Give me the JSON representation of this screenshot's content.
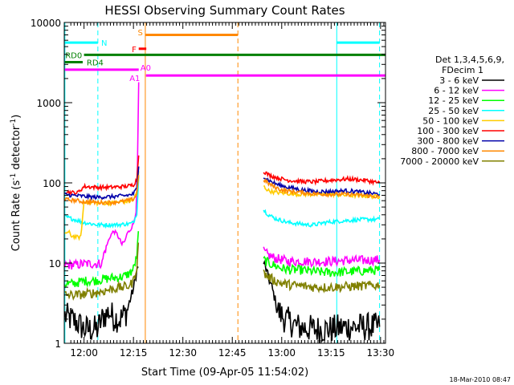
{
  "chart_data": {
    "type": "line",
    "title": "HESSI Observing Summary Count Rates",
    "xlabel": "Start Time (09-Apr-05 11:54:02)",
    "ylabel_main": "Count Rate (s",
    "ylabel_sup1": "-1",
    "ylabel_mid": " detector",
    "ylabel_sup2": "-1",
    "ylabel_end": ")",
    "yscale": "log",
    "ylim": [
      1,
      10000
    ],
    "xlim_minutes": [
      714.0,
      811.5
    ],
    "x_ticks": [
      {
        "m": 720,
        "label": "12:00"
      },
      {
        "m": 735,
        "label": "12:15"
      },
      {
        "m": 750,
        "label": "12:30"
      },
      {
        "m": 765,
        "label": "12:45"
      },
      {
        "m": 780,
        "label": "13:00"
      },
      {
        "m": 795,
        "label": "13:15"
      },
      {
        "m": 810,
        "label": "13:30"
      }
    ],
    "y_ticks": [
      {
        "v": 1,
        "label": "1"
      },
      {
        "v": 10,
        "label": "10"
      },
      {
        "v": 100,
        "label": "100"
      },
      {
        "v": 1000,
        "label": "1000"
      },
      {
        "v": 10000,
        "label": "10000"
      }
    ],
    "legend_header": [
      "Det 1,3,4,5,6,9,",
      "FDecim 1"
    ],
    "series": [
      {
        "name": "3 - 6 keV",
        "color": "#000000",
        "points": [
          [
            714.2,
            2.2
          ],
          [
            716,
            2.0
          ],
          [
            718,
            1.8
          ],
          [
            720,
            1.5
          ],
          [
            722,
            1.5
          ],
          [
            724,
            1.5
          ],
          [
            726,
            2.2
          ],
          [
            727,
            2.3
          ],
          [
            727.5,
            2.5
          ],
          [
            729,
            2.1
          ],
          [
            731,
            2.0
          ],
          [
            733,
            2.5
          ],
          [
            734,
            3.5
          ],
          [
            735,
            4.8
          ],
          [
            736,
            8.0
          ],
          [
            736.5,
            9
          ],
          [
            774.5,
            10
          ],
          [
            775,
            9
          ],
          [
            776,
            6.5
          ],
          [
            777,
            5
          ],
          [
            778,
            3.5
          ],
          [
            779,
            2.5
          ],
          [
            781,
            2.0
          ],
          [
            785,
            1.6
          ],
          [
            790,
            1.5
          ],
          [
            795,
            1.5
          ],
          [
            800,
            1.6
          ],
          [
            805,
            1.6
          ],
          [
            809.7,
            1.6
          ]
        ]
      },
      {
        "name": "6 - 12 keV",
        "color": "#ff00ff",
        "points": [
          [
            714.2,
            9.5
          ],
          [
            716,
            9.5
          ],
          [
            718,
            9.5
          ],
          [
            719.5,
            9.8
          ],
          [
            720,
            9.8
          ],
          [
            722,
            9.8
          ],
          [
            724,
            9.8
          ],
          [
            725.5,
            10
          ],
          [
            726,
            13
          ],
          [
            727,
            17
          ],
          [
            728,
            22
          ],
          [
            729,
            25
          ],
          [
            730,
            23
          ],
          [
            731,
            19
          ],
          [
            731.5,
            17
          ],
          [
            732.5,
            19
          ],
          [
            733,
            23
          ],
          [
            734,
            26
          ],
          [
            735,
            31
          ],
          [
            735.8,
            45
          ],
          [
            736.2,
            150
          ],
          [
            736.6,
            1800
          ],
          [
            774.5,
            14
          ],
          [
            776,
            12.5
          ],
          [
            778,
            11.5
          ],
          [
            780,
            11
          ],
          [
            782,
            10.5
          ],
          [
            785,
            10.5
          ],
          [
            788,
            10.5
          ],
          [
            790,
            10.4
          ],
          [
            795,
            10.5
          ],
          [
            800,
            10.8
          ],
          [
            805,
            10.8
          ],
          [
            809.7,
            11
          ]
        ]
      },
      {
        "name": "12 - 25 keV",
        "color": "#00ff00",
        "points": [
          [
            714.2,
            5.5
          ],
          [
            716,
            5.5
          ],
          [
            718,
            5.7
          ],
          [
            720,
            6.0
          ],
          [
            722,
            6.0
          ],
          [
            724,
            6.1
          ],
          [
            726,
            6.3
          ],
          [
            728,
            6.5
          ],
          [
            730,
            6.6
          ],
          [
            732,
            6.8
          ],
          [
            734,
            7.5
          ],
          [
            735,
            8.5
          ],
          [
            736,
            12
          ],
          [
            736.5,
            25
          ],
          [
            774.5,
            11
          ],
          [
            776,
            10
          ],
          [
            778,
            9.3
          ],
          [
            780,
            8.6
          ],
          [
            783,
            8.2
          ],
          [
            786,
            8.2
          ],
          [
            790,
            7.8
          ],
          [
            795,
            7.6
          ],
          [
            800,
            7.8
          ],
          [
            805,
            8.0
          ],
          [
            809.7,
            8.2
          ]
        ]
      },
      {
        "name": "25 - 50 keV",
        "color": "#00ffff",
        "points": [
          [
            714.2,
            38
          ],
          [
            716,
            36
          ],
          [
            718,
            34
          ],
          [
            720,
            32
          ],
          [
            722,
            31
          ],
          [
            724,
            30
          ],
          [
            726,
            30
          ],
          [
            728,
            30
          ],
          [
            730,
            30
          ],
          [
            732,
            30.5
          ],
          [
            734,
            31
          ],
          [
            735,
            32
          ],
          [
            736,
            42
          ],
          [
            736.6,
            120
          ],
          [
            774.5,
            46
          ],
          [
            776,
            40
          ],
          [
            778,
            36
          ],
          [
            780,
            34
          ],
          [
            782,
            32
          ],
          [
            785,
            31
          ],
          [
            788,
            30
          ],
          [
            790,
            30
          ],
          [
            793,
            32
          ],
          [
            796,
            33
          ],
          [
            800,
            34
          ],
          [
            805,
            35
          ],
          [
            809.7,
            35
          ]
        ]
      },
      {
        "name": "50 - 100 keV",
        "color": "#ffcc00",
        "points": [
          [
            714.2,
            24
          ],
          [
            715.5,
            24
          ],
          [
            716,
            22
          ],
          [
            718,
            21
          ],
          [
            719,
            21
          ],
          [
            720,
            58
          ],
          [
            722,
            57
          ],
          [
            724,
            56
          ],
          [
            726,
            56
          ],
          [
            728,
            56
          ],
          [
            730,
            57
          ],
          [
            732,
            58
          ],
          [
            734,
            59
          ],
          [
            735,
            62
          ],
          [
            736,
            75
          ],
          [
            736.6,
            140
          ],
          [
            774.5,
            90
          ],
          [
            776,
            80
          ],
          [
            778,
            76
          ],
          [
            780,
            75
          ],
          [
            783,
            73
          ],
          [
            786,
            72
          ],
          [
            790,
            72
          ],
          [
            795,
            72
          ],
          [
            800,
            70
          ],
          [
            805,
            69
          ],
          [
            809.7,
            67
          ]
        ]
      },
      {
        "name": "100 - 300 keV",
        "color": "#ff0000",
        "points": [
          [
            714.2,
            78
          ],
          [
            716,
            76
          ],
          [
            718,
            75
          ],
          [
            720,
            90
          ],
          [
            722,
            89
          ],
          [
            724,
            88
          ],
          [
            726,
            88
          ],
          [
            728,
            88
          ],
          [
            730,
            89
          ],
          [
            732,
            90
          ],
          [
            734,
            92
          ],
          [
            735,
            95
          ],
          [
            736,
            110
          ],
          [
            736.6,
            220
          ],
          [
            774.5,
            140
          ],
          [
            776,
            126
          ],
          [
            778,
            118
          ],
          [
            780,
            112
          ],
          [
            782,
            108
          ],
          [
            786,
            104
          ],
          [
            790,
            103
          ],
          [
            795,
            108
          ],
          [
            800,
            112
          ],
          [
            805,
            108
          ],
          [
            809.7,
            100
          ]
        ]
      },
      {
        "name": "300 - 800 keV",
        "color": "#0000aa",
        "points": [
          [
            714.2,
            72
          ],
          [
            716,
            70
          ],
          [
            718,
            69
          ],
          [
            720,
            68
          ],
          [
            722,
            67
          ],
          [
            724,
            66
          ],
          [
            726,
            67
          ],
          [
            728,
            67
          ],
          [
            730,
            68
          ],
          [
            732,
            69
          ],
          [
            734,
            71
          ],
          [
            735,
            73
          ],
          [
            736,
            85
          ],
          [
            736.6,
            160
          ],
          [
            774.5,
            122
          ],
          [
            776,
            108
          ],
          [
            778,
            98
          ],
          [
            780,
            92
          ],
          [
            782,
            88
          ],
          [
            786,
            82
          ],
          [
            790,
            78
          ],
          [
            795,
            78
          ],
          [
            800,
            80
          ],
          [
            805,
            76
          ],
          [
            809.7,
            72
          ]
        ]
      },
      {
        "name": "800 - 7000 keV",
        "color": "#ff8800",
        "points": [
          [
            714.2,
            62
          ],
          [
            716,
            61
          ],
          [
            718,
            60
          ],
          [
            720,
            58
          ],
          [
            722,
            58
          ],
          [
            724,
            57
          ],
          [
            726,
            57
          ],
          [
            728,
            57
          ],
          [
            730,
            58
          ],
          [
            732,
            59
          ],
          [
            734,
            61
          ],
          [
            735,
            63
          ],
          [
            736,
            72
          ],
          [
            736.6,
            125
          ],
          [
            774.5,
            110
          ],
          [
            776,
            98
          ],
          [
            778,
            88
          ],
          [
            780,
            82
          ],
          [
            782,
            79
          ],
          [
            786,
            76
          ],
          [
            790,
            73
          ],
          [
            795,
            72
          ],
          [
            800,
            72
          ],
          [
            805,
            70
          ],
          [
            809.7,
            67
          ]
        ]
      },
      {
        "name": "7000 - 20000 keV",
        "color": "#808000",
        "points": [
          [
            714.2,
            4.0
          ],
          [
            716,
            4.0
          ],
          [
            718,
            4.0
          ],
          [
            720,
            4.1
          ],
          [
            722,
            4.2
          ],
          [
            724,
            4.3
          ],
          [
            726,
            4.5
          ],
          [
            728,
            4.7
          ],
          [
            730,
            4.9
          ],
          [
            732,
            5.0
          ],
          [
            734,
            5.3
          ],
          [
            735,
            6.0
          ],
          [
            736,
            9
          ],
          [
            736.5,
            18
          ],
          [
            774.5,
            7.5
          ],
          [
            776,
            6.7
          ],
          [
            778,
            6.0
          ],
          [
            780,
            5.6
          ],
          [
            783,
            5.3
          ],
          [
            786,
            5.2
          ],
          [
            790,
            5.0
          ],
          [
            795,
            5.0
          ],
          [
            800,
            5.1
          ],
          [
            805,
            5.2
          ],
          [
            809.7,
            5.3
          ]
        ]
      }
    ],
    "state_bars": [
      {
        "label": "N",
        "color": "#00ffff",
        "y": 5600,
        "segments": [
          [
            714.2,
            724.2
          ],
          [
            796.7,
            809.7
          ]
        ],
        "label_m": 725.2,
        "label_y": 5600
      },
      {
        "label": "S",
        "color": "#ff8800",
        "y": 7000,
        "segments": [
          [
            738.6,
            766.7
          ]
        ],
        "label_m": 736.3,
        "label_y": 7600
      },
      {
        "label": "F",
        "color": "#ff0000",
        "y": 4700,
        "segments": [
          [
            736.6,
            738.9
          ]
        ],
        "label_m": 734.5,
        "label_y": 4700
      },
      {
        "label": "RD0",
        "color": "#008000",
        "y": 3950,
        "segments": [
          [
            720.0,
            811.5
          ]
        ],
        "label_m": 714.3,
        "label_y": 3950
      },
      {
        "label": "RD4",
        "color": "#008000",
        "y": 3200,
        "segments": [
          [
            714.2,
            719.6
          ]
        ],
        "label_m": 720.8,
        "label_y": 3200
      },
      {
        "label": "A0",
        "color": "#ff00ff",
        "y": 2580,
        "segments": [
          [
            714.2,
            736.6
          ]
        ],
        "label_m": 737.1,
        "label_y": 2750
      },
      {
        "label": "A1",
        "color": "#ff00ff",
        "y": 2180,
        "segments": [
          [
            738.8,
            811.5
          ]
        ],
        "label_m": 733.8,
        "label_y": 2050
      }
    ],
    "vlines": [
      {
        "m": 714.2,
        "color": "#00ffff",
        "style": "solid"
      },
      {
        "m": 724.2,
        "color": "#00ffff",
        "style": "dashed"
      },
      {
        "m": 738.6,
        "color": "#ff8800",
        "style": "solid"
      },
      {
        "m": 766.7,
        "color": "#ff8800",
        "style": "dashed"
      },
      {
        "m": 796.7,
        "color": "#00ffff",
        "style": "solid"
      },
      {
        "m": 809.7,
        "color": "#00ffff",
        "style": "dashed"
      }
    ],
    "grid": false,
    "legend_position": "right"
  },
  "footer_timestamp": "18-Mar-2010 08:47"
}
